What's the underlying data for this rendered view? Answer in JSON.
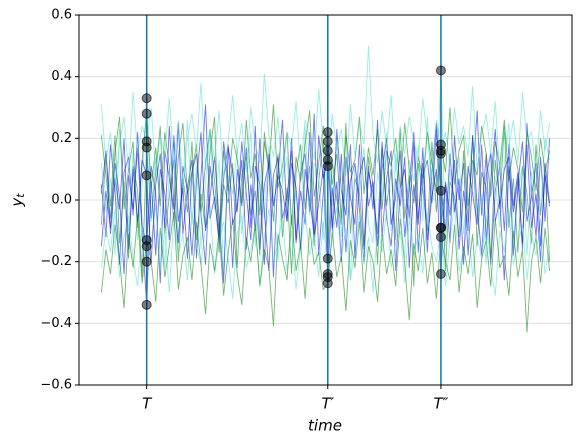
{
  "chart_data": {
    "type": "line",
    "xlabel": "time",
    "ylabel": "y",
    "ylabel_sub": "t",
    "x": [
      0,
      1,
      2,
      3,
      4,
      5,
      6,
      7,
      8,
      9,
      10,
      11,
      12,
      13,
      14,
      15,
      16,
      17,
      18,
      19,
      20,
      21,
      22,
      23,
      24,
      25,
      26,
      27,
      28,
      29,
      30,
      31,
      32,
      33,
      34,
      35,
      36,
      37,
      38,
      39,
      40,
      41,
      42,
      43,
      44,
      45,
      46,
      47,
      48,
      49,
      50,
      51,
      52,
      53,
      54,
      55,
      56,
      57,
      58,
      59,
      60,
      61,
      62,
      63,
      64,
      65,
      66,
      67,
      68,
      69,
      70,
      71,
      72,
      73,
      74,
      75,
      76,
      77,
      78,
      79,
      80,
      81,
      82,
      83,
      84,
      85,
      86,
      87,
      88,
      89,
      90,
      91,
      92,
      93,
      94,
      95,
      96,
      97,
      98,
      99
    ],
    "xlim": [
      -4.95,
      103.95
    ],
    "xticks": [
      {
        "value": 10,
        "label": "T"
      },
      {
        "value": 50,
        "label": "T′"
      },
      {
        "value": 75,
        "label": "T″"
      }
    ],
    "ylim": [
      -0.6,
      0.6
    ],
    "yticks": [
      {
        "value": -0.6,
        "label": "−0.6"
      },
      {
        "value": -0.4,
        "label": "−0.4"
      },
      {
        "value": -0.2,
        "label": "−0.2"
      },
      {
        "value": 0,
        "label": "0.0"
      },
      0.2,
      0.4,
      0.6
    ],
    "grid": true,
    "alpha": 0.55,
    "vline_color": "#1f77b4",
    "marker_color": "#000000",
    "series": [
      {
        "color": "#0000ff",
        "values": [
          0.05,
          -0.12,
          0.18,
          0.03,
          -0.21,
          0.09,
          0.14,
          -0.05,
          0.22,
          -0.08,
          -0.15,
          0.11,
          0.02,
          -0.27,
          0.16,
          0.07,
          -0.03,
          0.25,
          -0.11,
          0.04,
          0.13,
          -0.19,
          0.08,
          0.31,
          -0.06,
          0.01,
          -0.14,
          0.19,
          0.06,
          -0.22,
          0.1,
          -0.02,
          0.17,
          -0.09,
          0.24,
          -0.16,
          0.05,
          0.12,
          -0.25,
          0.08,
          0.03,
          -0.07,
          0.2,
          -0.13,
          0.09,
          0.15,
          -0.04,
          0.28,
          -0.18,
          0.02,
          0.22,
          -0.1,
          0.06,
          -0.2,
          0.14,
          0.01,
          -0.08,
          0.18,
          -0.15,
          0.11,
          -0.03,
          0.26,
          -0.12,
          0.07,
          0.16,
          -0.23,
          0.04,
          0.1,
          -0.06,
          0.19,
          -0.17,
          0.08,
          0.13,
          -0.01,
          0.23,
          -0.09,
          0.05,
          -0.14,
          0.21,
          0.0,
          0.12,
          -0.18,
          0.07,
          0.29,
          -0.05,
          0.15,
          -0.21,
          0.03,
          0.11,
          -0.1,
          0.18,
          -0.02,
          0.09,
          -0.16,
          0.25,
          0.04,
          -0.12,
          0.14,
          -0.07,
          0.2
        ]
      },
      {
        "color": "#008000",
        "values": [
          -0.08,
          0.15,
          -0.02,
          0.21,
          -0.14,
          0.06,
          -0.19,
          0.11,
          0.03,
          -0.25,
          0.17,
          -0.06,
          0.09,
          0.24,
          -0.11,
          0.01,
          0.13,
          -0.2,
          0.07,
          -0.04,
          0.19,
          -0.13,
          0.02,
          -0.09,
          0.16,
          0.27,
          -0.17,
          0.05,
          -0.01,
          0.12,
          -0.22,
          0.08,
          0.14,
          -0.05,
          0.03,
          -0.18,
          0.22,
          0.1,
          -0.07,
          0.15,
          -0.12,
          0.04,
          -0.24,
          0.09,
          0.18,
          -0.03,
          0.11,
          -0.15,
          0.06,
          0.2,
          -0.19,
          0.13,
          0.0,
          -0.08,
          0.25,
          -0.11,
          0.07,
          0.02,
          -0.16,
          0.14,
          0.05,
          -0.21,
          0.17,
          -0.02,
          0.1,
          -0.13,
          0.23,
          -0.06,
          0.08,
          -0.28,
          0.12,
          0.03,
          -0.1,
          0.19,
          -0.04,
          0.15,
          -0.23,
          0.06,
          0.01,
          -0.12,
          0.16,
          -0.07,
          0.21,
          -0.15,
          0.09,
          0.04,
          -0.19,
          0.13,
          -0.01,
          0.24,
          -0.09,
          0.07,
          -0.17,
          0.11,
          0.02,
          -0.14,
          0.18,
          -0.05,
          0.1,
          -0.2
        ]
      },
      {
        "color": "#40e0d0",
        "values": [
          0.12,
          -0.04,
          0.07,
          -0.18,
          0.23,
          0.01,
          -0.1,
          0.16,
          -0.13,
          0.05,
          0.33,
          -0.07,
          0.14,
          -0.02,
          -0.22,
          0.09,
          0.19,
          -0.12,
          0.03,
          0.26,
          -0.08,
          0.11,
          -0.16,
          0.06,
          0.21,
          -0.03,
          0.13,
          -0.24,
          0.08,
          0.02,
          0.17,
          -0.11,
          0.04,
          0.22,
          -0.15,
          0.1,
          -0.06,
          0.18,
          0.01,
          -0.2,
          0.07,
          0.14,
          -0.09,
          0.03,
          -0.17,
          0.24,
          -0.05,
          0.12,
          0.08,
          -0.13,
          0.16,
          -0.02,
          0.2,
          -0.12,
          0.05,
          -0.26,
          0.11,
          0.02,
          0.17,
          -0.08,
          -0.14,
          0.09,
          0.01,
          0.22,
          -0.1,
          0.15,
          -0.04,
          -0.19,
          0.13,
          0.06,
          0.18,
          -0.07,
          0.27,
          -0.01,
          0.04,
          0.42,
          -0.15,
          0.1,
          -0.03,
          0.14,
          -0.11,
          0.08,
          0.19,
          -0.06,
          0.02,
          -0.21,
          0.16,
          0.07,
          -0.09,
          0.12,
          0.25,
          -0.14,
          0.03,
          0.11,
          -0.18,
          0.09,
          0.01,
          -0.05,
          0.2,
          0.13
        ]
      },
      {
        "color": "#0000ff",
        "values": [
          -0.15,
          0.03,
          -0.09,
          0.12,
          0.01,
          -0.24,
          0.08,
          -0.03,
          0.17,
          -0.11,
          -0.34,
          0.06,
          -0.18,
          0.1,
          0.02,
          -0.13,
          0.21,
          -0.07,
          0.04,
          -0.19,
          0.09,
          0.15,
          -0.05,
          -0.21,
          0.11,
          0.0,
          -0.12,
          0.07,
          0.18,
          -0.08,
          -0.02,
          0.13,
          -0.16,
          0.05,
          -0.1,
          0.2,
          -0.04,
          -0.23,
          0.08,
          0.14,
          -0.06,
          0.01,
          0.16,
          -0.14,
          0.03,
          -0.08,
          0.22,
          -0.12,
          -0.01,
          0.1,
          -0.25,
          0.04,
          -0.09,
          0.15,
          -0.17,
          0.06,
          0.12,
          -0.03,
          -0.2,
          0.09,
          0.02,
          -0.11,
          0.19,
          -0.06,
          -0.15,
          0.07,
          -0.02,
          0.14,
          -0.22,
          0.05,
          -0.08,
          0.17,
          -0.13,
          0.01,
          0.1,
          -0.24,
          0.06,
          -0.05,
          0.13,
          -0.16,
          0.03,
          -0.1,
          0.21,
          -0.02,
          -0.18,
          0.08,
          0.15,
          -0.07,
          0.0,
          -0.26,
          0.11,
          -0.04,
          0.07,
          -0.14,
          0.18,
          -0.09,
          0.02,
          -0.2,
          0.12,
          -0.01
        ]
      },
      {
        "color": "#008000",
        "values": [
          0.21,
          0.08,
          -0.06,
          0.15,
          0.27,
          -0.03,
          0.1,
          0.19,
          -0.09,
          0.13,
          0.28,
          0.04,
          0.17,
          -0.02,
          0.22,
          0.11,
          -0.07,
          0.14,
          0.25,
          0.02,
          0.09,
          0.18,
          -0.04,
          0.12,
          0.23,
          0.06,
          -0.1,
          0.16,
          0.03,
          0.2,
          0.13,
          -0.01,
          0.26,
          0.07,
          0.15,
          -0.05,
          0.19,
          0.1,
          0.31,
          0.04,
          0.11,
          0.22,
          -0.08,
          0.14,
          0.06,
          0.18,
          0.29,
          0.01,
          0.12,
          0.24,
          0.19,
          0.05,
          0.15,
          -0.06,
          0.21,
          0.09,
          0.13,
          0.27,
          0.02,
          0.17,
          0.08,
          0.23,
          -0.03,
          0.16,
          0.11,
          0.2,
          0.04,
          0.25,
          0.1,
          -0.01,
          0.14,
          0.07,
          0.22,
          0.12,
          0.03,
          0.18,
          0.09,
          0.3,
          0.05,
          0.16,
          0.21,
          -0.02,
          0.13,
          0.08,
          0.24,
          0.15,
          0.01,
          0.19,
          0.11,
          0.26,
          0.06,
          0.17,
          0.1,
          -0.04,
          0.22,
          0.14,
          0.03,
          0.2,
          0.09,
          0.16
        ]
      },
      {
        "color": "#40e0d0",
        "values": [
          -0.22,
          -0.09,
          -0.17,
          -0.03,
          -0.25,
          -0.12,
          -0.05,
          -0.19,
          -0.28,
          -0.08,
          -0.2,
          -0.14,
          -0.01,
          -0.23,
          -0.1,
          -0.3,
          -0.06,
          -0.18,
          -0.11,
          -0.26,
          -0.04,
          -0.15,
          -0.21,
          -0.09,
          -0.02,
          -0.24,
          -0.13,
          -0.07,
          -0.19,
          -0.32,
          -0.11,
          -0.05,
          -0.22,
          -0.16,
          -0.08,
          -0.27,
          -0.12,
          -0.03,
          -0.2,
          -0.14,
          -0.06,
          -0.23,
          -0.1,
          -0.29,
          -0.15,
          -0.04,
          -0.18,
          -0.11,
          -0.25,
          -0.07,
          -0.24,
          -0.13,
          -0.02,
          -0.19,
          -0.09,
          -0.26,
          -0.16,
          -0.05,
          -0.21,
          -0.12,
          -0.3,
          -0.08,
          -0.17,
          -0.03,
          -0.22,
          -0.14,
          -0.1,
          -0.27,
          -0.06,
          -0.18,
          -0.11,
          -0.24,
          -0.04,
          -0.15,
          -0.2,
          -0.09,
          -0.28,
          -0.13,
          -0.01,
          -0.23,
          -0.16,
          -0.07,
          -0.25,
          -0.12,
          -0.19,
          -0.05,
          -0.22,
          -0.31,
          -0.1,
          -0.17,
          -0.03,
          -0.21,
          -0.14,
          -0.08,
          -0.26,
          -0.11,
          -0.18,
          -0.06,
          -0.24,
          -0.15
        ]
      },
      {
        "color": "#0000ff",
        "values": [
          0.02,
          0.16,
          -0.11,
          0.07,
          -0.03,
          0.2,
          -0.16,
          0.1,
          -0.07,
          0.13,
          0.08,
          -0.2,
          0.05,
          0.15,
          -0.09,
          0.24,
          -0.01,
          -0.14,
          0.11,
          0.03,
          -0.18,
          0.06,
          0.22,
          -0.1,
          0.01,
          0.14,
          -0.06,
          -0.27,
          0.17,
          0.09,
          -0.04,
          0.19,
          0.02,
          -0.13,
          0.11,
          0.05,
          -0.21,
          0.15,
          -0.02,
          0.08,
          0.26,
          -0.07,
          0.12,
          0.04,
          -0.16,
          0.1,
          0.0,
          -0.11,
          0.21,
          0.07,
          0.13,
          -0.09,
          0.23,
          0.03,
          -0.05,
          0.18,
          -0.19,
          0.08,
          0.14,
          -0.02,
          0.06,
          -0.15,
          0.1,
          0.2,
          -0.08,
          0.01,
          0.16,
          -0.12,
          0.04,
          0.22,
          -0.06,
          0.12,
          -0.17,
          0.09,
          0.25,
          0.03,
          -0.1,
          0.15,
          -0.04,
          0.07,
          -0.21,
          0.11,
          0.02,
          -0.08,
          0.18,
          -0.13,
          0.06,
          0.23,
          -0.03,
          0.1,
          0.14,
          -0.18,
          0.05,
          0.19,
          -0.07,
          0.01,
          0.12,
          -0.15,
          0.08,
          -0.02
        ]
      },
      {
        "color": "#008000",
        "values": [
          -0.3,
          -0.16,
          -0.24,
          -0.08,
          -0.19,
          -0.35,
          -0.11,
          -0.22,
          -0.05,
          -0.27,
          -0.13,
          -0.2,
          -0.33,
          -0.09,
          -0.25,
          -0.15,
          -0.04,
          -0.29,
          -0.18,
          -0.12,
          -0.26,
          -0.07,
          -0.21,
          -0.37,
          -0.14,
          -0.23,
          -0.1,
          -0.31,
          -0.17,
          -0.06,
          -0.24,
          -0.34,
          -0.12,
          -0.2,
          -0.08,
          -0.28,
          -0.16,
          -0.22,
          -0.41,
          -0.11,
          -0.19,
          -0.26,
          -0.05,
          -0.23,
          -0.14,
          -0.32,
          -0.09,
          -0.21,
          -0.17,
          -0.29,
          -0.27,
          -0.1,
          -0.25,
          -0.18,
          -0.36,
          -0.13,
          -0.22,
          -0.07,
          -0.3,
          -0.15,
          -0.2,
          -0.33,
          -0.11,
          -0.24,
          -0.16,
          -0.28,
          -0.06,
          -0.21,
          -0.39,
          -0.14,
          -0.23,
          -0.09,
          -0.27,
          -0.17,
          -0.32,
          -0.12,
          -0.2,
          -0.26,
          -0.08,
          -0.3,
          -0.15,
          -0.24,
          -0.11,
          -0.35,
          -0.19,
          -0.13,
          -0.28,
          -0.06,
          -0.22,
          -0.18,
          -0.31,
          -0.1,
          -0.25,
          -0.16,
          -0.43,
          -0.2,
          -0.12,
          -0.27,
          -0.09,
          -0.23
        ]
      },
      {
        "color": "#40e0d0",
        "values": [
          0.31,
          0.12,
          0.22,
          0.05,
          0.18,
          0.27,
          0.09,
          0.35,
          0.15,
          0.24,
          0.19,
          0.3,
          0.08,
          0.21,
          0.14,
          0.33,
          0.11,
          0.26,
          0.04,
          0.2,
          0.28,
          0.16,
          0.38,
          0.1,
          0.23,
          0.13,
          0.29,
          0.07,
          0.19,
          0.34,
          0.15,
          0.25,
          0.09,
          0.3,
          0.18,
          0.12,
          0.41,
          0.21,
          0.14,
          0.27,
          0.06,
          0.22,
          0.17,
          0.32,
          0.1,
          0.26,
          0.2,
          0.13,
          0.36,
          0.19,
          0.11,
          0.28,
          0.16,
          0.23,
          0.08,
          0.31,
          0.14,
          0.25,
          0.18,
          0.5,
          0.21,
          0.12,
          0.29,
          0.17,
          0.34,
          0.09,
          0.24,
          0.15,
          0.27,
          0.19,
          0.13,
          0.33,
          0.2,
          0.07,
          0.26,
          0.16,
          0.22,
          0.11,
          0.3,
          0.18,
          0.24,
          0.14,
          0.37,
          0.1,
          0.21,
          0.28,
          0.15,
          0.32,
          0.08,
          0.23,
          0.17,
          0.26,
          0.12,
          0.35,
          0.19,
          0.22,
          0.09,
          0.29,
          0.16,
          0.25
        ]
      }
    ]
  }
}
